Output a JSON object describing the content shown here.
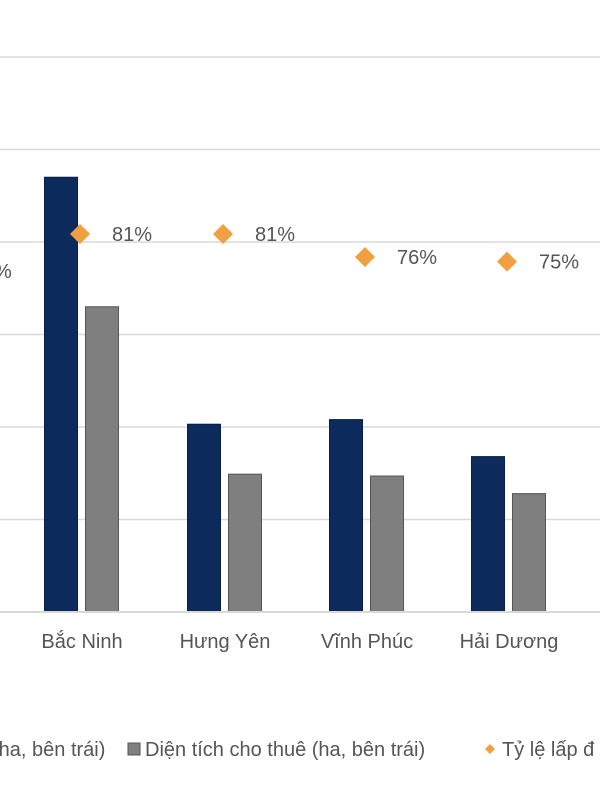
{
  "chart_data": {
    "type": "bar",
    "categories": [
      "Bắc Ninh",
      "Hưng Yên",
      "Vĩnh Phúc",
      "Hải Dương"
    ],
    "series": [
      {
        "name": "(ha, bên trái)",
        "kind": "bar",
        "color": "#0d2a5c",
        "values": [
          4700,
          2030,
          2080,
          1680
        ]
      },
      {
        "name": "Diện tích cho thuê (ha, bên trái)",
        "kind": "bar",
        "color": "#7f7f7f",
        "values": [
          3300,
          1490,
          1470,
          1280
        ]
      },
      {
        "name": "Tỷ lệ lấp đ",
        "kind": "marker",
        "marker": "diamond",
        "color": "#f0a040",
        "values": [
          81,
          81,
          76,
          75
        ],
        "labels": [
          "81%",
          "81%",
          "76%",
          "75%"
        ]
      }
    ],
    "partial_label_left": "%",
    "ylim_left": [
      0,
      6500
    ],
    "grid": true,
    "legend_position": "bottom"
  }
}
